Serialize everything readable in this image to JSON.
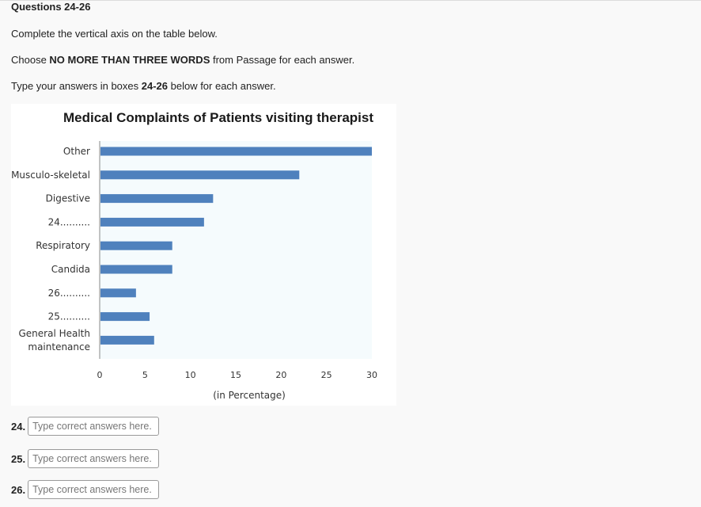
{
  "heading": "Questions 24-26",
  "instructions": {
    "line1": "Complete the vertical axis on the table below.",
    "line2_pre": "Choose ",
    "line2_bold": "NO MORE THAN THREE WORDS",
    "line2_post": " from Passage for each answer.",
    "line3_pre": "Type your answers in boxes ",
    "line3_bold": "24-26",
    "line3_post": " below for each answer."
  },
  "chart_data": {
    "type": "bar",
    "orientation": "horizontal",
    "title": "Medical Complaints of Patients visiting therapist",
    "xlabel": "(in Percentage)",
    "ylabel": "",
    "categories": [
      "Other",
      "Musculo-skeletal",
      "Digestive",
      "24..........",
      "Respiratory",
      "Candida",
      "26..........",
      "25..........",
      "General Health maintenance"
    ],
    "category_lines": [
      [
        "Other"
      ],
      [
        "Musculo-skeletal"
      ],
      [
        "Digestive"
      ],
      [
        "24.........."
      ],
      [
        "Respiratory"
      ],
      [
        "Candida"
      ],
      [
        "26.........."
      ],
      [
        "25.........."
      ],
      [
        "General Health",
        "maintenance"
      ]
    ],
    "values": [
      30,
      22,
      12.5,
      11.5,
      8,
      8,
      4,
      5.5,
      6
    ],
    "xlim": [
      0,
      30
    ],
    "xticks": [
      0,
      5,
      10,
      15,
      20,
      25,
      30
    ],
    "bar_color": "#4f81bd",
    "plot_background": "#f5fbfd",
    "grid": false,
    "legend": "none"
  },
  "answers": [
    {
      "num": "24.",
      "placeholder": "Type correct answers here.",
      "value": ""
    },
    {
      "num": "25.",
      "placeholder": "Type correct answers here.",
      "value": ""
    },
    {
      "num": "26.",
      "placeholder": "Type correct answers here.",
      "value": ""
    }
  ]
}
